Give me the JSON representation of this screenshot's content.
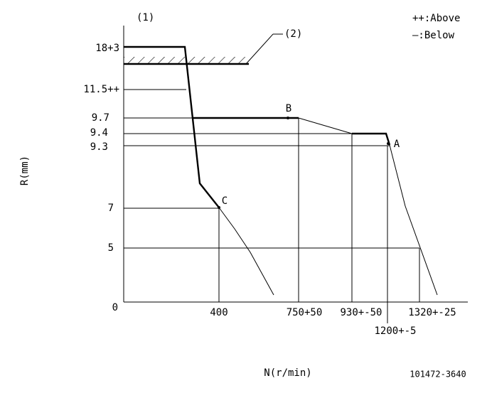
{
  "corner_label": "(1)",
  "legend": {
    "above": "++:Above",
    "below": "—:Below"
  },
  "stop_label": "(2)",
  "y_axis": {
    "title": "R(mm)",
    "labels": [
      "18+3",
      "11.5++",
      "9.7",
      "9.4",
      "9.3",
      "7",
      "5",
      "0"
    ]
  },
  "x_axis": {
    "title": "N(r/min)",
    "labels": [
      "400",
      "750+50",
      "930+-50",
      "1320+-25",
      "1200+-5"
    ]
  },
  "points": {
    "a": "A",
    "b": "B",
    "c": "C"
  },
  "drawing_number": "101472-3640"
}
